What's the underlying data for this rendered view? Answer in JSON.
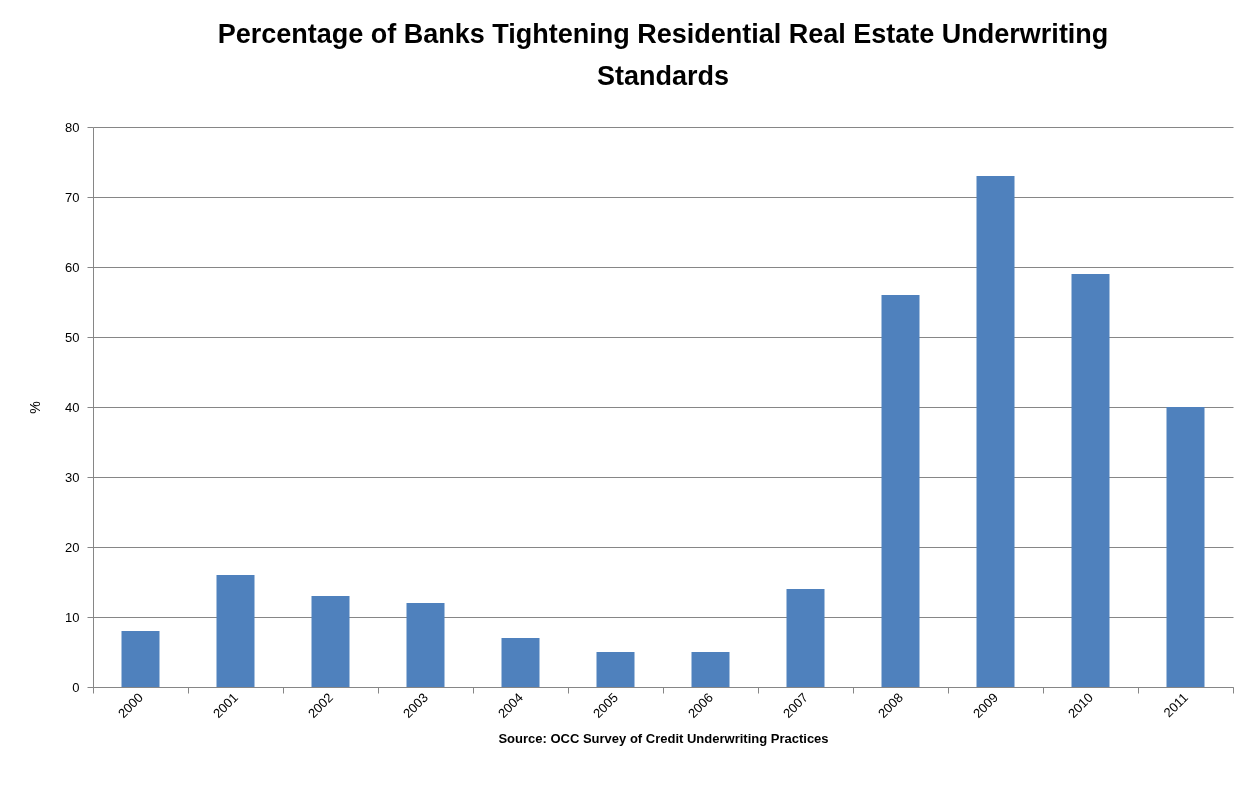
{
  "chart_data": {
    "type": "bar",
    "title": "Percentage of Banks Tightening Residential Real Estate Underwriting Standards",
    "ylabel": "%",
    "annotations": [
      "Source: OCC Survey of Credit Underwriting Practices"
    ],
    "categories": [
      "2000",
      "2001",
      "2002",
      "2003",
      "2004",
      "2005",
      "2006",
      "2007",
      "2008",
      "2009",
      "2010",
      "2011"
    ],
    "values": [
      8,
      16,
      13,
      12,
      7,
      5,
      5,
      14,
      56,
      73,
      59,
      40
    ],
    "color": "#4f81bd",
    "ylim": [
      0,
      80
    ],
    "yticks": [
      0,
      10,
      20,
      30,
      40,
      50,
      60,
      70,
      80
    ],
    "grid": "y"
  }
}
